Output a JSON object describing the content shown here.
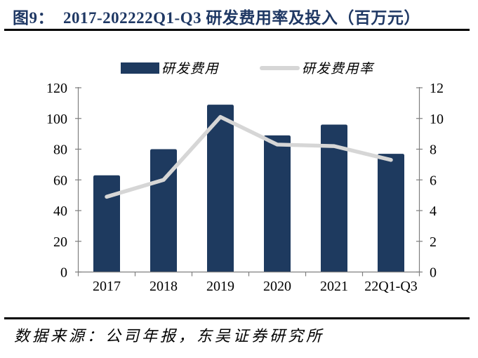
{
  "figure": {
    "title_prefix": "图9：",
    "title": "2017-202222Q1-Q3 研发费用率及投入（百万元）"
  },
  "chart_data": {
    "type": "combo-bar-line",
    "title": "2017-202222Q1-Q3 研发费用率及投入（百万元）",
    "categories": [
      "2017",
      "2018",
      "2019",
      "2020",
      "2021",
      "22Q1-Q3"
    ],
    "series": [
      {
        "name": "研发费用",
        "type": "bar",
        "axis": "left",
        "color": "#1e3a5f",
        "values": [
          63,
          80,
          109,
          89,
          96,
          77
        ]
      },
      {
        "name": "研发费用率",
        "type": "line",
        "axis": "right",
        "color": "#d6d6d6",
        "values": [
          4.9,
          6.0,
          10.1,
          8.3,
          8.2,
          7.3
        ]
      }
    ],
    "left_axis": {
      "min": 0,
      "max": 120,
      "step": 20,
      "tick_labels": [
        "0",
        "20",
        "40",
        "60",
        "80",
        "100",
        "120"
      ]
    },
    "right_axis": {
      "min": 0,
      "max": 12,
      "step": 2,
      "tick_labels": [
        "0",
        "2",
        "4",
        "6",
        "8",
        "10",
        "12"
      ]
    },
    "legend_position": "top",
    "grid": false,
    "colors": {
      "axis": "#7f7f7f",
      "tick_text": "#000000",
      "title": "#1f3864",
      "rule": "#000000"
    }
  },
  "footer": {
    "source_text": "数据来源：公司年报，东吴证券研究所"
  }
}
